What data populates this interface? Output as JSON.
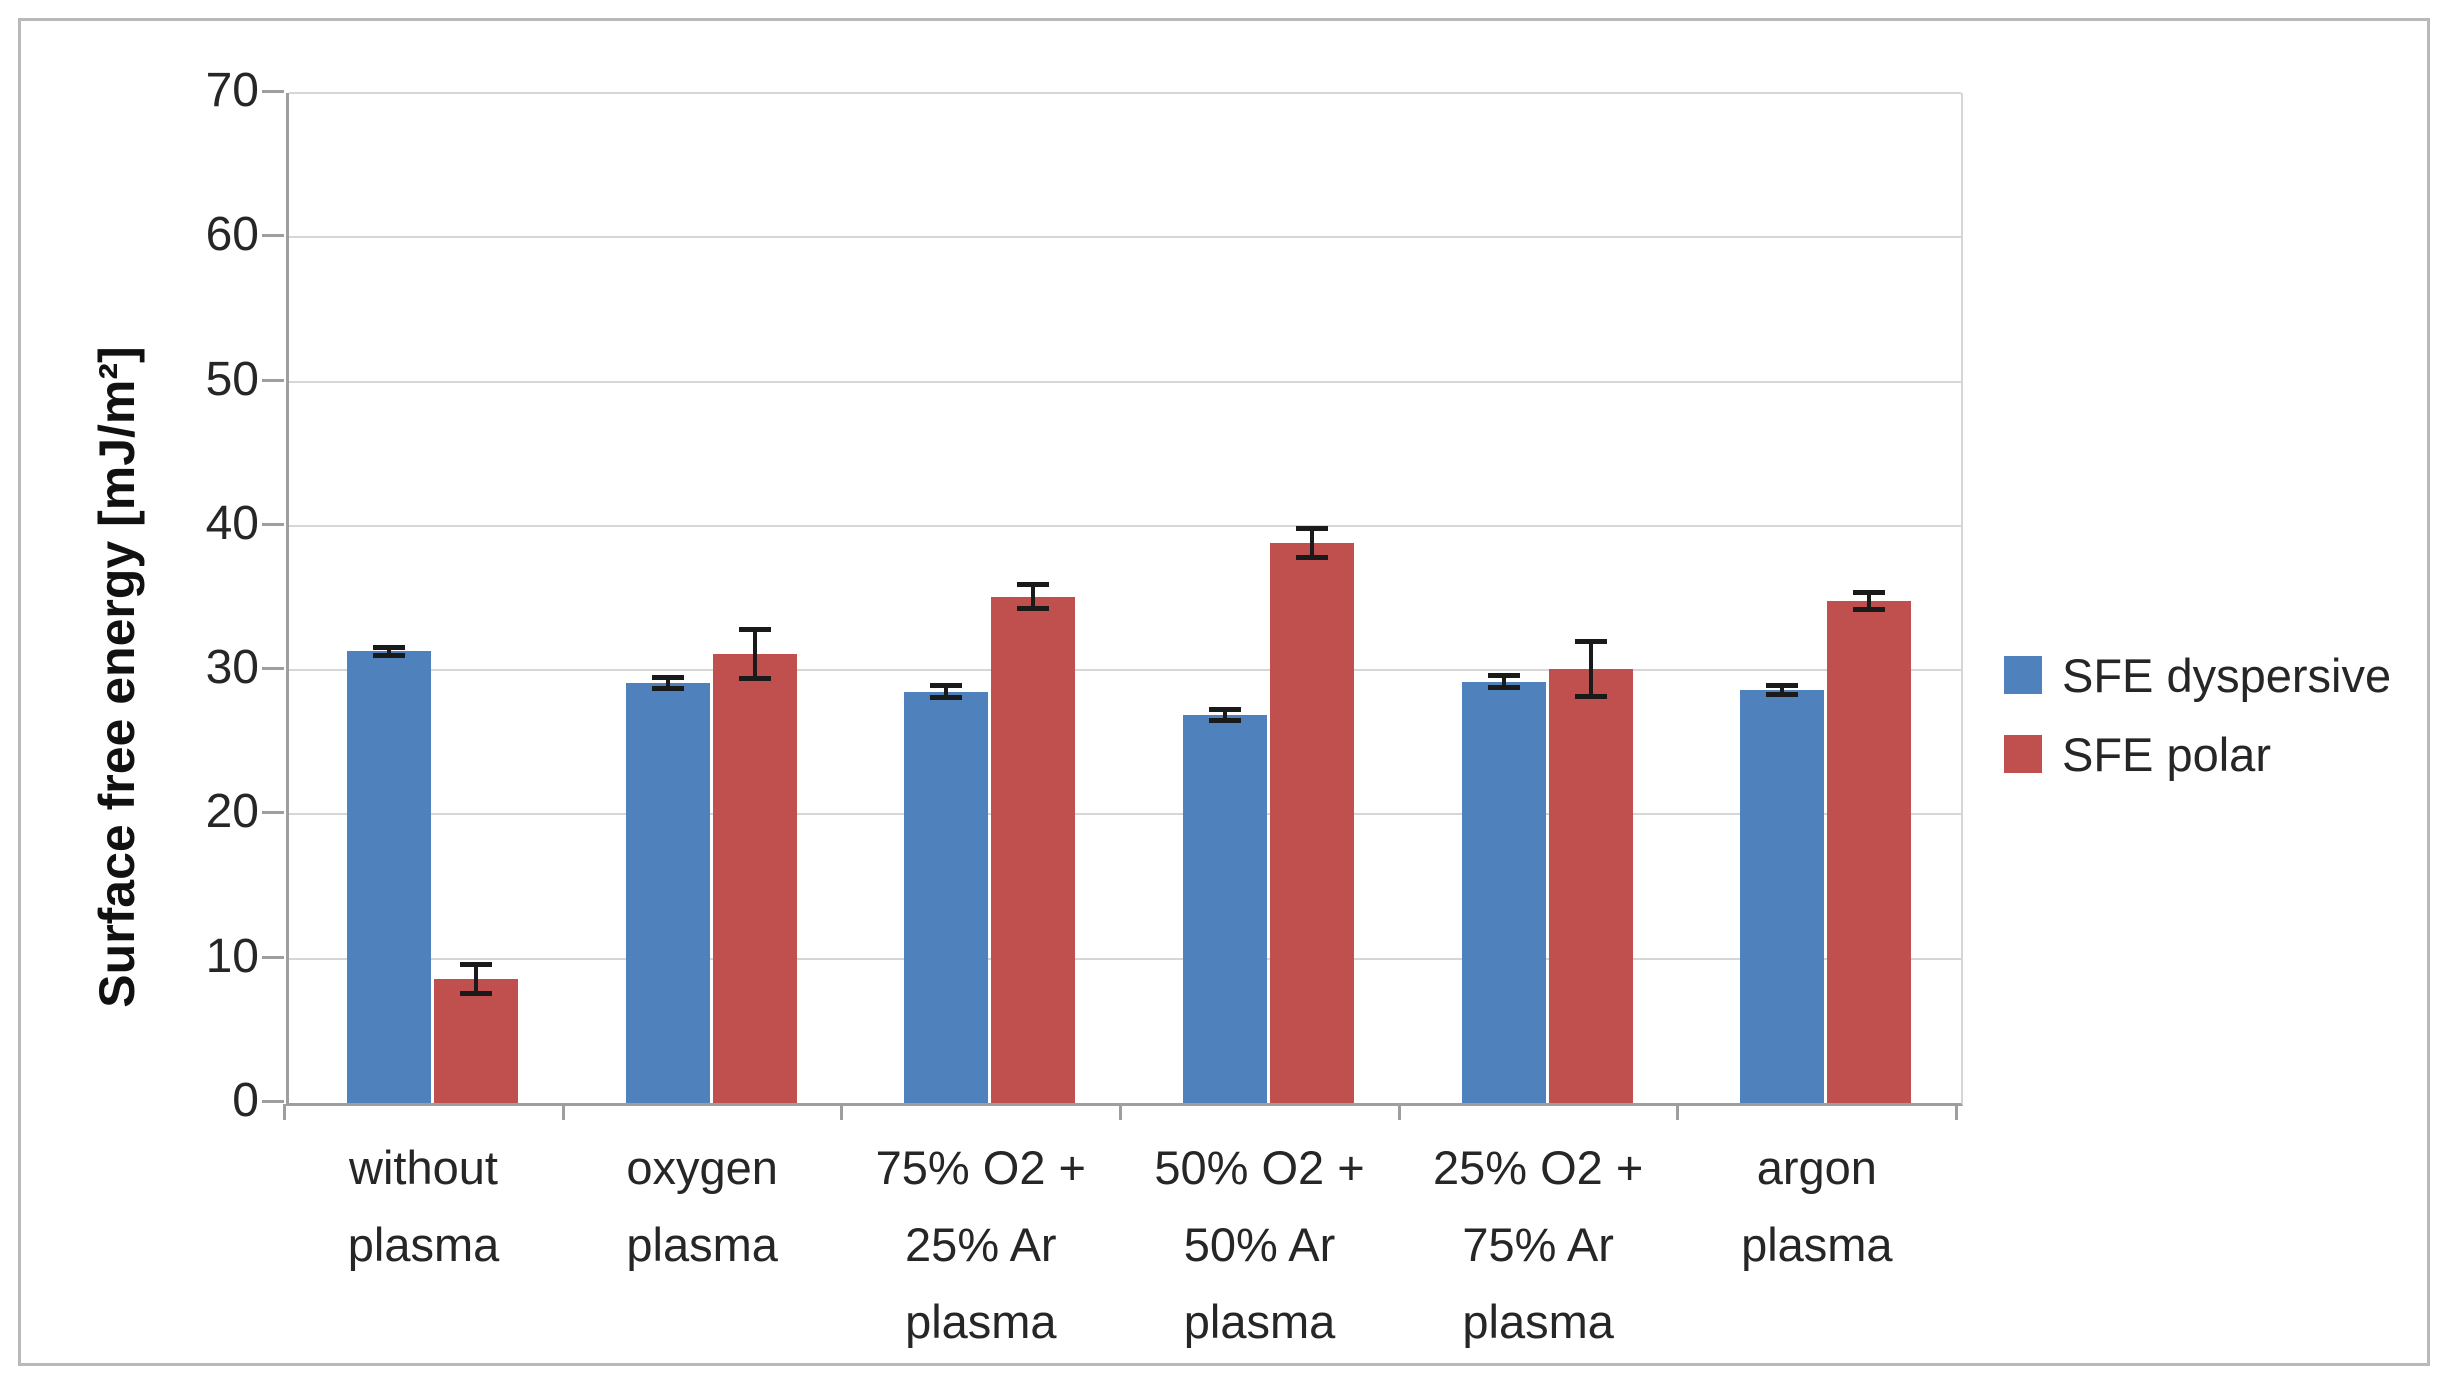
{
  "chart_data": {
    "type": "bar",
    "title": "",
    "xlabel": "",
    "ylabel": "Surface free energy [mJ/m²]",
    "ylim": [
      0,
      70
    ],
    "yticks": [
      0,
      10,
      20,
      30,
      40,
      50,
      60,
      70
    ],
    "grid": true,
    "legend_position": "right",
    "categories": [
      "without plasma",
      "oxygen plasma",
      "75% O2 + 25% Ar plasma",
      "50% O2 + 50% Ar plasma",
      "25% O2 + 75% Ar plasma",
      "argon plasma"
    ],
    "category_label_lines": [
      [
        "without",
        "plasma"
      ],
      [
        "oxygen",
        "plasma"
      ],
      [
        "75% O2 +",
        "25% Ar",
        "plasma"
      ],
      [
        "50% O2 +",
        "50% Ar",
        "plasma"
      ],
      [
        "25% O2 +",
        "75% Ar",
        "plasma"
      ],
      [
        "argon",
        "plasma"
      ]
    ],
    "series": [
      {
        "name": "SFE dyspersive",
        "color": "#4F81BD",
        "values": [
          31.3,
          29.1,
          28.5,
          26.9,
          29.2,
          28.6
        ],
        "errors": [
          0.2,
          0.3,
          0.3,
          0.3,
          0.3,
          0.2
        ]
      },
      {
        "name": "SFE polar",
        "color": "#C0504D",
        "values": [
          8.6,
          31.1,
          35.1,
          38.8,
          30.1,
          34.8
        ],
        "errors": [
          0.9,
          1.6,
          0.7,
          0.9,
          1.8,
          0.5
        ]
      }
    ],
    "colors": {
      "gridline": "#d6d6d6",
      "axis": "#9e9e9e",
      "error_bar": "#1a1a1a",
      "text": "#262626"
    }
  }
}
